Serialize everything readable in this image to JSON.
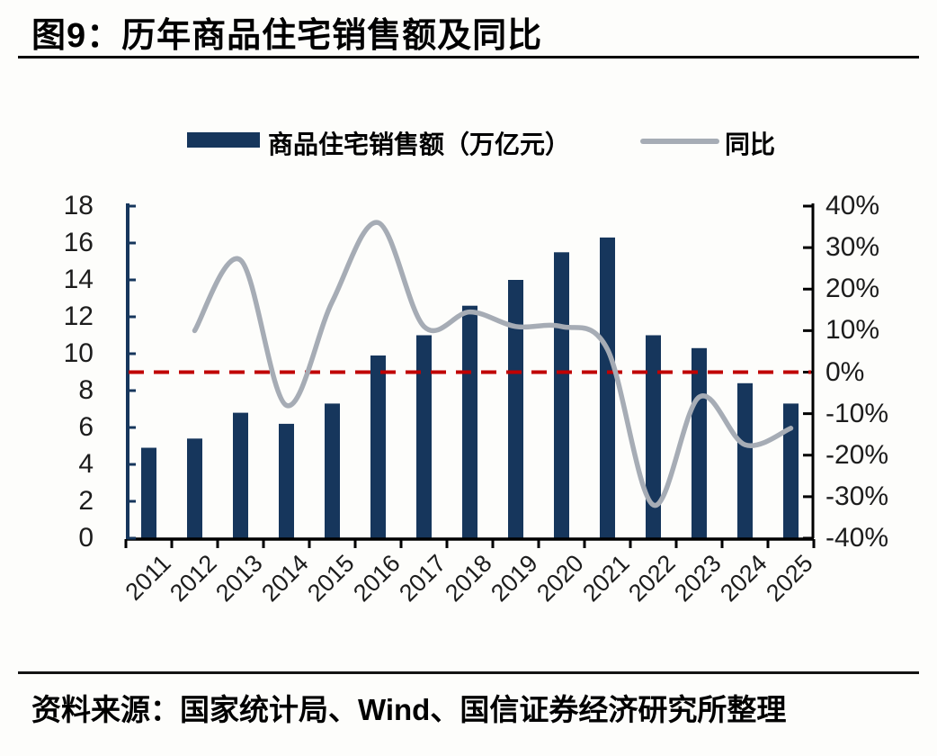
{
  "figure": {
    "number_label": "图9",
    "title": "图9：历年商品住宅销售额及同比",
    "source": "资料来源：国家统计局、Wind、国信证券经济研究所整理"
  },
  "colors": {
    "bar": "#16365C",
    "line": "#A6ACB5",
    "reference_line": "#C00000",
    "left_axis": "#16365C",
    "right_axis": "#000000",
    "text": "#1c1c1c"
  },
  "chart_data": {
    "type": "bar+line combo",
    "title": "历年商品住宅销售额及同比",
    "grid": false,
    "legend_position": "top",
    "categories": [
      "2011",
      "2012",
      "2013",
      "2014",
      "2015",
      "2016",
      "2017",
      "2018",
      "2019",
      "2020",
      "2021",
      "2022",
      "2023",
      "2024",
      "2025"
    ],
    "series": [
      {
        "name": "商品住宅销售额（万亿元）",
        "type": "bar",
        "axis": "left",
        "color": "#16365C",
        "values": [
          4.9,
          5.4,
          6.8,
          6.2,
          7.3,
          9.9,
          11.0,
          12.6,
          14.0,
          15.5,
          16.3,
          11.0,
          10.3,
          8.4,
          7.3
        ]
      },
      {
        "name": "同比",
        "type": "line",
        "axis": "right",
        "unit": "%",
        "color": "#A6ACB5",
        "values": [
          null,
          10,
          27,
          -8,
          17,
          36,
          11,
          14.5,
          11,
          11,
          5.5,
          -32,
          -6,
          -17.5,
          -13.5
        ]
      }
    ],
    "left_axis": {
      "min": 0,
      "max": 18,
      "step": 2,
      "tick_labels_top_down": [
        "18",
        "16",
        "14",
        "12",
        "10",
        "8",
        "6",
        "4",
        "2",
        "0"
      ],
      "color": "#16365C"
    },
    "right_axis": {
      "min": -40,
      "max": 40,
      "step": 10,
      "tick_labels_top_down": [
        "40%",
        "30%",
        "20%",
        "10%",
        "0%",
        "-10%",
        "-20%",
        "-30%",
        "-40%"
      ],
      "color": "#000000"
    },
    "zero_reference_line": {
      "axis": "right",
      "value": 0,
      "color": "#C00000",
      "style": "dashed"
    }
  }
}
